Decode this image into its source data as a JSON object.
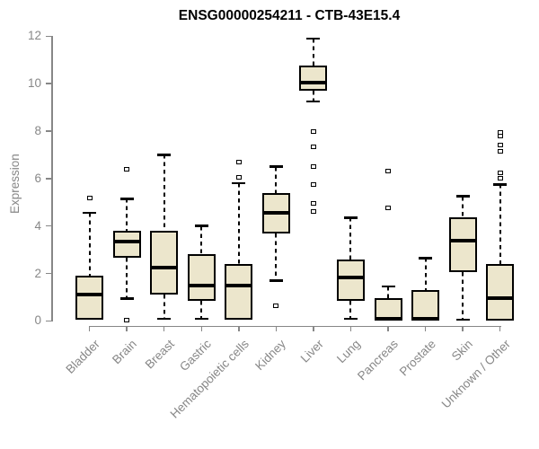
{
  "chart_data": {
    "type": "boxplot",
    "title": "ENSG00000254211 - CTB-43E15.4",
    "ylabel": "Expression",
    "xlabel": "",
    "ylim": [
      0,
      12
    ],
    "yticks": [
      0,
      2,
      4,
      6,
      8,
      10,
      12
    ],
    "grid": false,
    "legend": null,
    "axis_color": "#878787",
    "box_fill_color": "#ece6cc",
    "box_line_color": "#000000",
    "categories": [
      "Bladder",
      "Brain",
      "Breast",
      "Gastric",
      "Hematopoietic cells",
      "Kidney",
      "Liver",
      "Lung",
      "Pancreas",
      "Prostate",
      "Skin",
      "Unknown / Other"
    ],
    "boxes": [
      {
        "category": "Bladder",
        "whisker_low": 0.05,
        "q1": 0.05,
        "median": 1.1,
        "q3": 1.9,
        "whisker_high": 4.55,
        "outliers": [
          5.2
        ]
      },
      {
        "category": "Brain",
        "whisker_low": 0.95,
        "q1": 2.65,
        "median": 3.35,
        "q3": 3.8,
        "whisker_high": 5.15,
        "outliers": [
          6.4,
          0.05
        ]
      },
      {
        "category": "Breast",
        "whisker_low": 0.1,
        "q1": 1.1,
        "median": 2.25,
        "q3": 3.8,
        "whisker_high": 7.0,
        "outliers": []
      },
      {
        "category": "Gastric",
        "whisker_low": 0.1,
        "q1": 0.85,
        "median": 1.5,
        "q3": 2.8,
        "whisker_high": 4.0,
        "outliers": []
      },
      {
        "category": "Hematopoietic cells",
        "whisker_low": 0.05,
        "q1": 0.05,
        "median": 1.5,
        "q3": 2.4,
        "whisker_high": 5.8,
        "outliers": [
          6.7,
          6.05
        ]
      },
      {
        "category": "Kidney",
        "whisker_low": 1.7,
        "q1": 3.7,
        "median": 4.55,
        "q3": 5.4,
        "whisker_high": 6.5,
        "outliers": [
          0.65
        ]
      },
      {
        "category": "Liver",
        "whisker_low": 9.25,
        "q1": 9.7,
        "median": 10.05,
        "q3": 10.75,
        "whisker_high": 11.9,
        "outliers": [
          8.0,
          7.35,
          6.5,
          5.75,
          4.95,
          4.6
        ]
      },
      {
        "category": "Lung",
        "whisker_low": 0.1,
        "q1": 0.85,
        "median": 1.85,
        "q3": 2.6,
        "whisker_high": 4.35,
        "outliers": []
      },
      {
        "category": "Pancreas",
        "whisker_low": 0.0,
        "q1": 0.0,
        "median": 0.1,
        "q3": 0.95,
        "whisker_high": 1.45,
        "outliers": [
          6.3,
          4.75
        ]
      },
      {
        "category": "Prostate",
        "whisker_low": 0.0,
        "q1": 0.0,
        "median": 0.1,
        "q3": 1.3,
        "whisker_high": 2.65,
        "outliers": []
      },
      {
        "category": "Skin",
        "whisker_low": 0.05,
        "q1": 2.05,
        "median": 3.4,
        "q3": 4.35,
        "whisker_high": 5.25,
        "outliers": []
      },
      {
        "category": "Unknown / Other",
        "whisker_low": 0.0,
        "q1": 0.0,
        "median": 0.95,
        "q3": 2.4,
        "whisker_high": 5.75,
        "outliers": [
          7.95,
          7.8,
          7.4,
          7.15,
          6.25,
          6.0
        ]
      }
    ]
  }
}
